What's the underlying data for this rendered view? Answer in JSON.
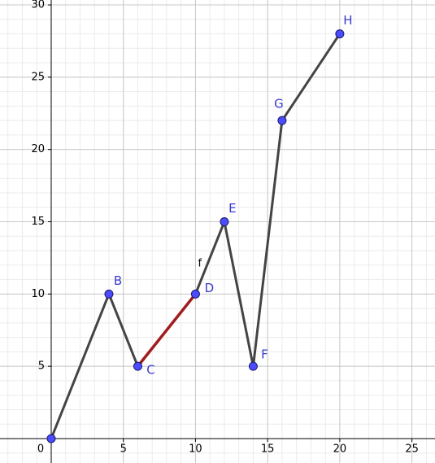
{
  "chart_data": {
    "type": "line",
    "x": [
      0,
      4,
      6,
      10,
      12,
      14,
      16,
      20
    ],
    "series": [
      {
        "color": "#444444",
        "values": [
          0,
          10,
          5,
          10,
          15,
          5,
          22,
          28
        ],
        "point_labels": [
          null,
          "B",
          "C",
          "D",
          "E",
          "F",
          "G",
          "H"
        ],
        "point_color": "#4b4bff"
      }
    ],
    "highlight": {
      "start_index": 2,
      "color": "#a11d1d"
    },
    "annotations": [
      {
        "text": "f",
        "x": 10.3,
        "y": 12.1
      }
    ],
    "xlim": [
      -3.55,
      26.6
    ],
    "ylim": [
      -1.69,
      30.34
    ],
    "xticks": [
      0,
      5,
      10,
      15,
      20,
      25
    ],
    "yticks": [
      5,
      10,
      15,
      20,
      25,
      30
    ],
    "grid": true,
    "minor_grid_step": 1
  }
}
